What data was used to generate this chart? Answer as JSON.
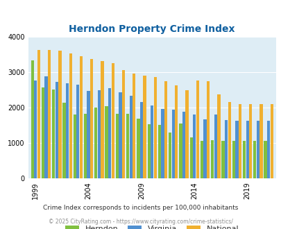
{
  "title": "Herndon Property Crime Index",
  "title_color": "#1060a0",
  "subtitle": "Crime Index corresponds to incidents per 100,000 inhabitants",
  "footer": "© 2025 CityRating.com - https://www.cityrating.com/crime-statistics/",
  "years": [
    1999,
    2000,
    2001,
    2002,
    2003,
    2004,
    2005,
    2006,
    2007,
    2008,
    2009,
    2010,
    2011,
    2012,
    2013,
    2014,
    2015,
    2016,
    2017,
    2018,
    2019,
    2020,
    2021
  ],
  "herndon": [
    3340,
    2560,
    2520,
    2130,
    1800,
    1820,
    2000,
    2050,
    1820,
    1830,
    1680,
    1540,
    1520,
    1290,
    1560,
    1160,
    1060,
    1080,
    1060,
    1060,
    1060,
    1060,
    1060
  ],
  "virginia": [
    2760,
    2880,
    2730,
    2680,
    2640,
    2480,
    2500,
    2540,
    2440,
    2330,
    2160,
    2070,
    1960,
    1950,
    1880,
    1800,
    1670,
    1800,
    1650,
    1640,
    1640,
    1640,
    1640
  ],
  "national": [
    3620,
    3630,
    3610,
    3530,
    3440,
    3380,
    3310,
    3250,
    3060,
    2960,
    2910,
    2870,
    2750,
    2620,
    2490,
    2760,
    2750,
    2380,
    2160,
    2090,
    2100,
    2100,
    2100
  ],
  "herndon_color": "#80c040",
  "virginia_color": "#5090d0",
  "national_color": "#f0b030",
  "bg_color": "#deedf5",
  "ylim": [
    0,
    4000
  ],
  "yticks": [
    0,
    1000,
    2000,
    3000,
    4000
  ],
  "xtick_labels": [
    "1999",
    "2004",
    "2009",
    "2014",
    "2019"
  ],
  "xtick_year_positions": [
    1999,
    2004,
    2009,
    2014,
    2019
  ]
}
